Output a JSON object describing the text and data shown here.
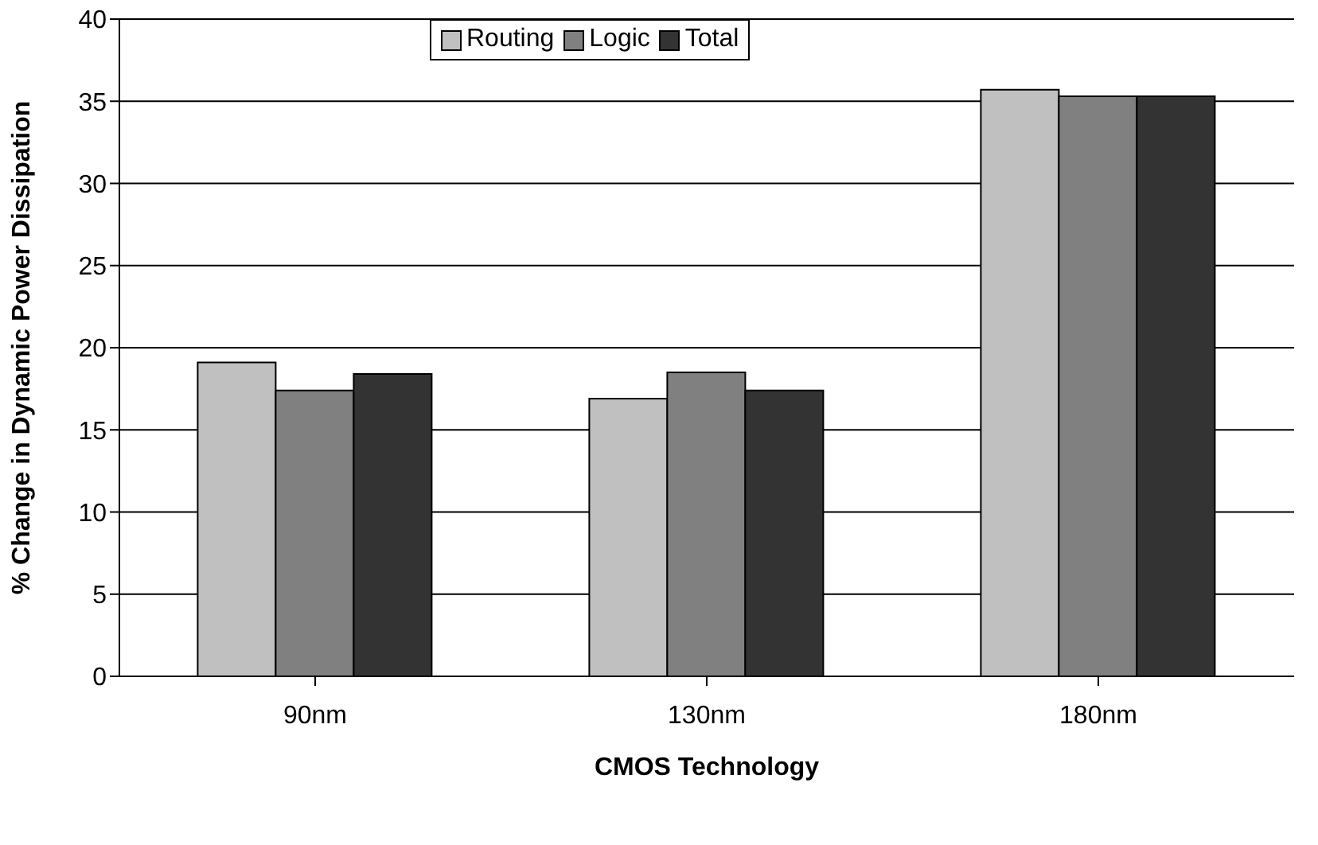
{
  "chart_data": {
    "type": "bar",
    "xlabel": "CMOS Technology",
    "ylabel": "% Change in Dynamic Power Dissipation",
    "categories": [
      "90nm",
      "130nm",
      "180nm"
    ],
    "series": [
      {
        "name": "Routing",
        "color": "#c0c0c0",
        "values": [
          19.1,
          16.9,
          35.7
        ]
      },
      {
        "name": "Logic",
        "color": "#808080",
        "values": [
          17.4,
          18.5,
          35.3
        ]
      },
      {
        "name": "Total",
        "color": "#333333",
        "values": [
          18.4,
          17.4,
          35.3
        ]
      }
    ],
    "ylim": [
      0,
      40
    ],
    "yticks": [
      0,
      5,
      10,
      15,
      20,
      25,
      30,
      35,
      40
    ],
    "grid": "y",
    "legend": "top"
  }
}
